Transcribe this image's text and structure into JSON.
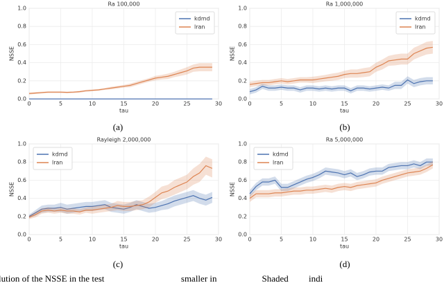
{
  "chart_data": [
    {
      "type": "line",
      "title": "Ra 100,000",
      "x_label": "tau",
      "y_label": "NSSE",
      "x": [
        0,
        1,
        2,
        3,
        4,
        5,
        6,
        7,
        8,
        9,
        10,
        11,
        12,
        13,
        14,
        15,
        16,
        17,
        18,
        19,
        20,
        21,
        22,
        23,
        24,
        25,
        26,
        27,
        28,
        29
      ],
      "series": [
        {
          "name": "kdmd",
          "color": "#4c72b0",
          "values": [
            0,
            0,
            0,
            0,
            0,
            0,
            0,
            0,
            0,
            0,
            0,
            0,
            0,
            0,
            0,
            0,
            0,
            0,
            0,
            0,
            0,
            0,
            0,
            0,
            0,
            0,
            0,
            0,
            0,
            0
          ],
          "errors": [
            0,
            0,
            0,
            0,
            0,
            0,
            0,
            0,
            0,
            0,
            0,
            0,
            0,
            0,
            0,
            0,
            0,
            0,
            0,
            0,
            0,
            0,
            0,
            0,
            0,
            0,
            0,
            0,
            0,
            0
          ]
        },
        {
          "name": "lran",
          "color": "#dd8452",
          "values": [
            0.06,
            0.065,
            0.07,
            0.075,
            0.075,
            0.075,
            0.072,
            0.075,
            0.08,
            0.09,
            0.095,
            0.1,
            0.11,
            0.12,
            0.13,
            0.14,
            0.15,
            0.17,
            0.19,
            0.21,
            0.23,
            0.24,
            0.25,
            0.27,
            0.29,
            0.31,
            0.34,
            0.35,
            0.35,
            0.35
          ],
          "errors": [
            0.01,
            0.01,
            0.01,
            0.01,
            0.01,
            0.01,
            0.01,
            0.01,
            0.01,
            0.01,
            0.01,
            0.01,
            0.01,
            0.015,
            0.015,
            0.015,
            0.02,
            0.02,
            0.02,
            0.02,
            0.025,
            0.025,
            0.03,
            0.03,
            0.035,
            0.04,
            0.04,
            0.045,
            0.045,
            0.045
          ]
        }
      ],
      "xlim": [
        0,
        30
      ],
      "xticks": [
        0,
        5,
        10,
        15,
        20,
        25,
        30
      ],
      "ylim": [
        0,
        1
      ],
      "yticks": [
        {
          "value": 0,
          "label": "0.0"
        },
        0.2,
        0.4,
        0.6,
        0.8,
        {
          "value": 1,
          "label": "1.0"
        }
      ],
      "grid": true,
      "legend": "upper right"
    },
    {
      "type": "line",
      "title": "Ra 1,000,000",
      "x_label": "tau",
      "y_label": "NSSE",
      "x": [
        0,
        1,
        2,
        3,
        4,
        5,
        6,
        7,
        8,
        9,
        10,
        11,
        12,
        13,
        14,
        15,
        16,
        17,
        18,
        19,
        20,
        21,
        22,
        23,
        24,
        25,
        26,
        27,
        28,
        29
      ],
      "series": [
        {
          "name": "kdmd",
          "color": "#4c72b0",
          "values": [
            0.08,
            0.1,
            0.14,
            0.12,
            0.12,
            0.13,
            0.12,
            0.12,
            0.1,
            0.12,
            0.12,
            0.11,
            0.12,
            0.11,
            0.12,
            0.12,
            0.09,
            0.12,
            0.12,
            0.11,
            0.12,
            0.13,
            0.12,
            0.15,
            0.15,
            0.21,
            0.17,
            0.19,
            0.2,
            0.2
          ],
          "errors": [
            0.03,
            0.03,
            0.03,
            0.03,
            0.03,
            0.03,
            0.03,
            0.03,
            0.03,
            0.03,
            0.03,
            0.03,
            0.03,
            0.03,
            0.03,
            0.03,
            0.03,
            0.03,
            0.03,
            0.03,
            0.03,
            0.03,
            0.03,
            0.04,
            0.04,
            0.04,
            0.04,
            0.04,
            0.04,
            0.04
          ]
        },
        {
          "name": "lran",
          "color": "#dd8452",
          "values": [
            0.16,
            0.17,
            0.18,
            0.18,
            0.19,
            0.2,
            0.19,
            0.2,
            0.21,
            0.21,
            0.21,
            0.22,
            0.23,
            0.24,
            0.25,
            0.27,
            0.28,
            0.28,
            0.29,
            0.3,
            0.35,
            0.38,
            0.42,
            0.43,
            0.44,
            0.44,
            0.5,
            0.53,
            0.56,
            0.57
          ],
          "errors": [
            0.03,
            0.03,
            0.03,
            0.03,
            0.03,
            0.03,
            0.03,
            0.03,
            0.03,
            0.03,
            0.035,
            0.035,
            0.035,
            0.04,
            0.04,
            0.04,
            0.045,
            0.045,
            0.05,
            0.05,
            0.05,
            0.055,
            0.055,
            0.06,
            0.06,
            0.06,
            0.065,
            0.065,
            0.07,
            0.07
          ]
        }
      ],
      "xlim": [
        0,
        30
      ],
      "xticks": [
        0,
        5,
        10,
        15,
        20,
        25,
        30
      ],
      "ylim": [
        0,
        1
      ],
      "yticks": [
        {
          "value": 0,
          "label": "0.0"
        },
        0.2,
        0.4,
        0.6,
        0.8,
        {
          "value": 1,
          "label": "1.0"
        }
      ],
      "grid": true,
      "legend": "upper right"
    },
    {
      "type": "line",
      "title": "Rayleigh 2,000,000",
      "x_label": "tau",
      "y_label": "NSSE",
      "x": [
        0,
        1,
        2,
        3,
        4,
        5,
        6,
        7,
        8,
        9,
        10,
        11,
        12,
        13,
        14,
        15,
        16,
        17,
        18,
        19,
        20,
        21,
        22,
        23,
        24,
        25,
        26,
        27,
        28,
        29
      ],
      "series": [
        {
          "name": "kdmd",
          "color": "#4c72b0",
          "values": [
            0.2,
            0.24,
            0.28,
            0.29,
            0.29,
            0.3,
            0.28,
            0.29,
            0.3,
            0.31,
            0.31,
            0.32,
            0.33,
            0.3,
            0.29,
            0.28,
            0.3,
            0.33,
            0.31,
            0.29,
            0.3,
            0.32,
            0.34,
            0.37,
            0.39,
            0.41,
            0.43,
            0.4,
            0.38,
            0.41
          ],
          "errors": [
            0.02,
            0.03,
            0.04,
            0.04,
            0.04,
            0.05,
            0.05,
            0.05,
            0.05,
            0.05,
            0.05,
            0.05,
            0.05,
            0.05,
            0.05,
            0.05,
            0.05,
            0.05,
            0.05,
            0.05,
            0.05,
            0.05,
            0.06,
            0.06,
            0.06,
            0.06,
            0.06,
            0.06,
            0.06,
            0.06
          ]
        },
        {
          "name": "lran",
          "color": "#dd8452",
          "values": [
            0.19,
            0.22,
            0.26,
            0.27,
            0.26,
            0.27,
            0.26,
            0.26,
            0.25,
            0.27,
            0.27,
            0.28,
            0.29,
            0.3,
            0.32,
            0.31,
            0.31,
            0.32,
            0.33,
            0.36,
            0.41,
            0.46,
            0.48,
            0.52,
            0.55,
            0.58,
            0.64,
            0.68,
            0.76,
            0.73
          ],
          "errors": [
            0.02,
            0.03,
            0.03,
            0.03,
            0.03,
            0.03,
            0.03,
            0.03,
            0.03,
            0.03,
            0.04,
            0.04,
            0.04,
            0.04,
            0.05,
            0.05,
            0.05,
            0.05,
            0.05,
            0.06,
            0.06,
            0.07,
            0.07,
            0.08,
            0.08,
            0.08,
            0.09,
            0.1,
            0.1,
            0.1
          ]
        }
      ],
      "xlim": [
        0,
        30
      ],
      "xticks": [
        0,
        5,
        10,
        15,
        20,
        25,
        30
      ],
      "ylim": [
        0,
        1
      ],
      "yticks": [
        {
          "value": 0,
          "label": "0.0"
        },
        0.2,
        0.4,
        0.6,
        0.8,
        {
          "value": 1,
          "label": "1.0"
        }
      ],
      "grid": true,
      "legend": "upper left"
    },
    {
      "type": "line",
      "title": "Ra 5,000,000",
      "x_label": "tau",
      "y_label": "NSSE",
      "x": [
        0,
        1,
        2,
        3,
        4,
        5,
        6,
        7,
        8,
        9,
        10,
        11,
        12,
        13,
        14,
        15,
        16,
        17,
        18,
        19,
        20,
        21,
        22,
        23,
        24,
        25,
        26,
        27,
        28,
        29
      ],
      "series": [
        {
          "name": "kdmd",
          "color": "#4c72b0",
          "values": [
            0.45,
            0.53,
            0.58,
            0.58,
            0.6,
            0.52,
            0.52,
            0.55,
            0.58,
            0.61,
            0.63,
            0.66,
            0.7,
            0.69,
            0.68,
            0.66,
            0.68,
            0.64,
            0.66,
            0.69,
            0.7,
            0.7,
            0.74,
            0.75,
            0.76,
            0.76,
            0.78,
            0.76,
            0.8,
            0.8
          ],
          "errors": [
            0.04,
            0.04,
            0.04,
            0.04,
            0.04,
            0.04,
            0.04,
            0.04,
            0.04,
            0.04,
            0.04,
            0.04,
            0.04,
            0.04,
            0.04,
            0.04,
            0.04,
            0.04,
            0.04,
            0.04,
            0.04,
            0.04,
            0.04,
            0.04,
            0.04,
            0.04,
            0.04,
            0.04,
            0.04,
            0.04
          ]
        },
        {
          "name": "lran",
          "color": "#dd8452",
          "values": [
            0.4,
            0.45,
            0.45,
            0.45,
            0.46,
            0.46,
            0.47,
            0.48,
            0.48,
            0.49,
            0.49,
            0.5,
            0.51,
            0.5,
            0.52,
            0.53,
            0.52,
            0.54,
            0.55,
            0.56,
            0.57,
            0.6,
            0.62,
            0.64,
            0.66,
            0.68,
            0.69,
            0.7,
            0.73,
            0.77
          ],
          "errors": [
            0.04,
            0.04,
            0.04,
            0.04,
            0.04,
            0.04,
            0.04,
            0.04,
            0.04,
            0.04,
            0.04,
            0.04,
            0.04,
            0.04,
            0.04,
            0.04,
            0.04,
            0.04,
            0.04,
            0.04,
            0.04,
            0.04,
            0.04,
            0.04,
            0.04,
            0.04,
            0.04,
            0.04,
            0.04,
            0.04
          ]
        }
      ],
      "xlim": [
        0,
        30
      ],
      "xticks": [
        0,
        5,
        10,
        15,
        20,
        25,
        30
      ],
      "ylim": [
        0,
        1
      ],
      "yticks": [
        {
          "value": 0,
          "label": "0.0"
        },
        0.2,
        0.4,
        0.6,
        0.8,
        {
          "value": 1,
          "label": "1.0"
        }
      ],
      "grid": true,
      "legend": "upper left"
    }
  ],
  "captions": [
    "(a)",
    "(b)",
    "(c)",
    "(d)"
  ],
  "footer_text": "lution of the NSSE in the test                                  smaller in                    Shaded         indi"
}
